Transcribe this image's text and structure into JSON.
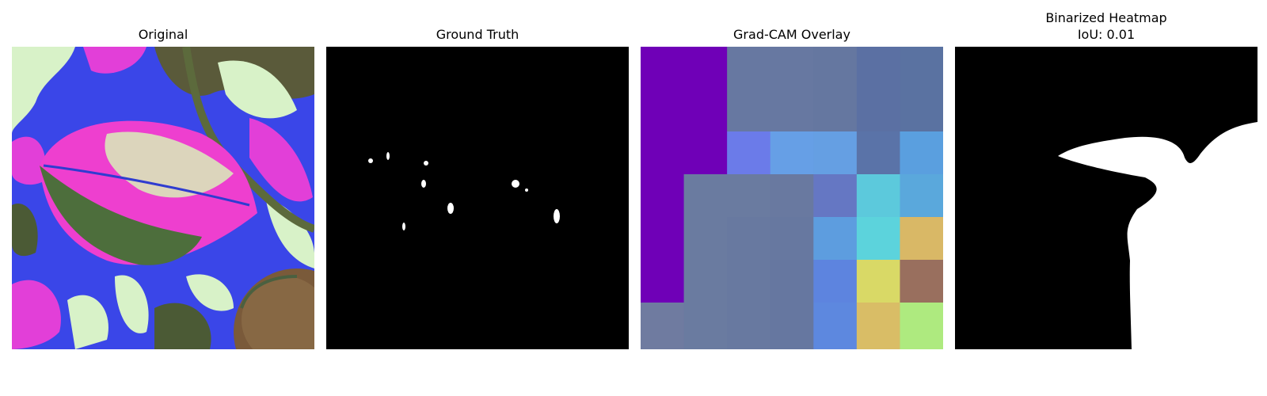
{
  "panels": [
    {
      "title": "Original"
    },
    {
      "title": "Ground Truth"
    },
    {
      "title": "Grad-CAM Overlay"
    },
    {
      "title_line1": "Binarized Heatmap",
      "title_line2": "IoU: 0.01"
    }
  ],
  "colors": {
    "mask_background": "#000000",
    "mask_foreground": "#ffffff"
  },
  "gradcam_grid": [
    [
      "#6f00b7",
      "#6f00b7",
      "#6778a1",
      "#6778a1",
      "#6577a0",
      "#5b70a3",
      "#5a72a1"
    ],
    [
      "#6f00b7",
      "#6f00b7",
      "#6b7be9",
      "#669fe6",
      "#659fe3",
      "#5a73a8",
      "#5a9fdf"
    ],
    [
      "#6f00b7",
      "#6a7ba0",
      "#6a7ba0",
      "#6979a0",
      "#6577c3",
      "#5cc9dc",
      "#5aa8dc"
    ],
    [
      "#6f00b7",
      "#6a7ba0",
      "#6879a0",
      "#6778a0",
      "#5d9ddf",
      "#5cd3dc",
      "#d9b866"
    ],
    [
      "#6f00b7",
      "#6a7ba0",
      "#6879a0",
      "#6677a0",
      "#5d84df",
      "#d9d966",
      "#996f5e"
    ],
    [
      "#6f7ba0",
      "#6a7ba0",
      "#6879a0",
      "#6677a0",
      "#5d88df",
      "#d9bd66",
      "#aeea7f"
    ]
  ]
}
